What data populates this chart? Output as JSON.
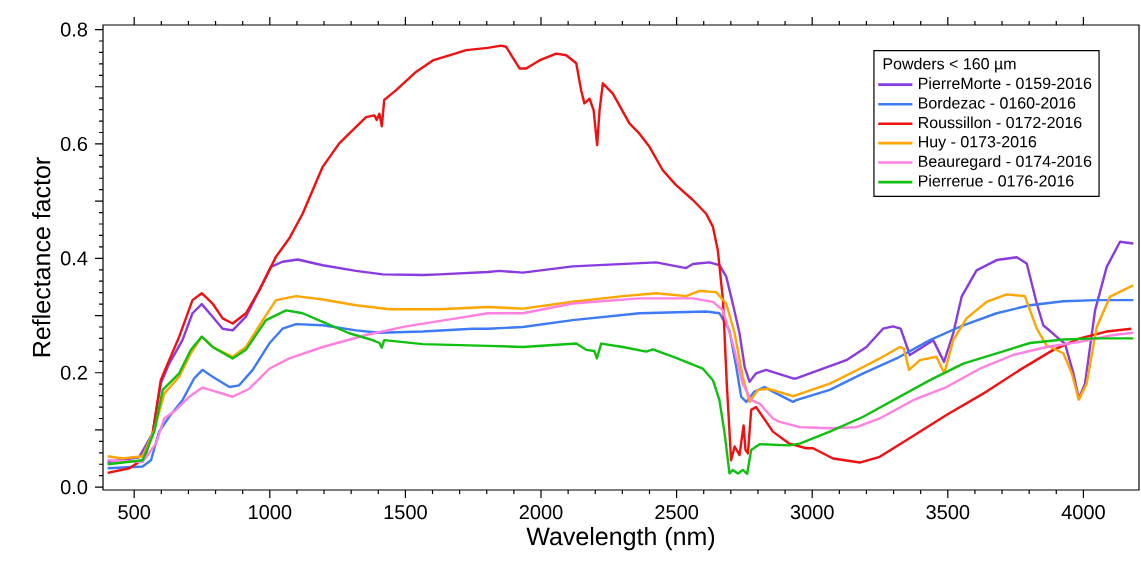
{
  "chart_data": {
    "type": "line",
    "xlabel": "Wavelength (nm)",
    "ylabel": "Reflectance factor",
    "legend_title": "Powders < 160 µm",
    "legend": "top right",
    "xlim": [
      385,
      4205
    ],
    "ylim": [
      -0.005,
      0.808
    ],
    "xticks": [
      500,
      1000,
      1500,
      2000,
      2500,
      3000,
      3500,
      4000
    ],
    "yticks": [
      {
        "value": 0,
        "label": "0.0"
      },
      {
        "value": 0.1,
        "label": null
      },
      {
        "value": 0.2,
        "label": "0.2"
      },
      {
        "value": 0.3,
        "label": null
      },
      {
        "value": 0.4,
        "label": "0.4"
      },
      {
        "value": 0.5,
        "label": null
      },
      {
        "value": 0.6,
        "label": "0.6"
      },
      {
        "value": 0.7,
        "label": null
      },
      {
        "value": 0.8,
        "label": "0.8"
      }
    ],
    "series": [
      {
        "name": "PierreMorte - 0159-2016",
        "color": "#8a3be0",
        "x": [
          402,
          518,
          568,
          598,
          629,
          678,
          715,
          749,
          789,
          826,
          863,
          912,
          961,
          1004,
          1047,
          1103,
          1195,
          1318,
          1416,
          1564,
          1625,
          1804,
          1846,
          1933,
          2117,
          2425,
          2535,
          2560,
          2621,
          2658,
          2683,
          2707,
          2732,
          2751,
          2769,
          2793,
          2830,
          2929,
          2941,
          3027,
          3126,
          3200,
          3261,
          3298,
          3326,
          3360,
          3397,
          3446,
          3486,
          3520,
          3551,
          3606,
          3680,
          3754,
          3791,
          3828,
          3852,
          3901,
          3932,
          3963,
          3983,
          4006,
          4043,
          4086,
          4135,
          4184
        ],
        "values": [
          0.044,
          0.052,
          0.094,
          0.181,
          0.216,
          0.257,
          0.304,
          0.32,
          0.298,
          0.277,
          0.274,
          0.298,
          0.344,
          0.385,
          0.394,
          0.398,
          0.388,
          0.378,
          0.372,
          0.371,
          0.372,
          0.376,
          0.378,
          0.375,
          0.386,
          0.393,
          0.383,
          0.39,
          0.393,
          0.388,
          0.368,
          0.321,
          0.269,
          0.21,
          0.184,
          0.199,
          0.205,
          0.19,
          0.19,
          0.205,
          0.222,
          0.245,
          0.277,
          0.281,
          0.277,
          0.231,
          0.242,
          0.257,
          0.219,
          0.269,
          0.333,
          0.379,
          0.397,
          0.402,
          0.391,
          0.321,
          0.283,
          0.263,
          0.251,
          0.199,
          0.155,
          0.181,
          0.309,
          0.385,
          0.429,
          0.426
        ]
      },
      {
        "name": "Bordezac - 0160-2016",
        "color": "#3d7af5",
        "x": [
          402,
          531,
          562,
          592,
          629,
          678,
          721,
          752,
          789,
          851,
          887,
          937,
          998,
          1047,
          1097,
          1195,
          1318,
          1404,
          1564,
          1748,
          1804,
          1933,
          2117,
          2363,
          2609,
          2658,
          2695,
          2720,
          2738,
          2757,
          2787,
          2824,
          2855,
          2929,
          2941,
          3065,
          3188,
          3311,
          3434,
          3557,
          3680,
          3803,
          3926,
          4049,
          4184
        ],
        "values": [
          0.033,
          0.036,
          0.047,
          0.097,
          0.123,
          0.152,
          0.19,
          0.205,
          0.193,
          0.175,
          0.178,
          0.205,
          0.251,
          0.277,
          0.285,
          0.283,
          0.274,
          0.27,
          0.272,
          0.277,
          0.277,
          0.28,
          0.292,
          0.304,
          0.307,
          0.304,
          0.274,
          0.21,
          0.158,
          0.149,
          0.167,
          0.175,
          0.167,
          0.149,
          0.152,
          0.17,
          0.199,
          0.225,
          0.257,
          0.283,
          0.304,
          0.318,
          0.325,
          0.327,
          0.327
        ]
      },
      {
        "name": "Roussillon - 0172-2016",
        "color": "#f01010",
        "x": [
          402,
          482,
          537,
          568,
          598,
          629,
          666,
          715,
          749,
          789,
          826,
          863,
          912,
          961,
          1023,
          1072,
          1121,
          1195,
          1256,
          1318,
          1355,
          1386,
          1394,
          1404,
          1413,
          1422,
          1466,
          1539,
          1601,
          1662,
          1724,
          1804,
          1853,
          1871,
          1921,
          1945,
          1994,
          2056,
          2093,
          2130,
          2148,
          2160,
          2179,
          2194,
          2207,
          2216,
          2228,
          2265,
          2326,
          2363,
          2400,
          2449,
          2498,
          2560,
          2609,
          2634,
          2652,
          2671,
          2685,
          2701,
          2714,
          2732,
          2747,
          2754,
          2763,
          2775,
          2793,
          2855,
          2916,
          2978,
          3003,
          3077,
          3175,
          3249,
          3347,
          3495,
          3643,
          3766,
          3889,
          3987,
          4085,
          4177
        ],
        "values": [
          0.025,
          0.033,
          0.05,
          0.094,
          0.187,
          0.222,
          0.263,
          0.327,
          0.339,
          0.321,
          0.295,
          0.286,
          0.304,
          0.344,
          0.403,
          0.435,
          0.478,
          0.56,
          0.601,
          0.63,
          0.647,
          0.65,
          0.642,
          0.653,
          0.631,
          0.677,
          0.694,
          0.726,
          0.746,
          0.755,
          0.764,
          0.768,
          0.772,
          0.77,
          0.732,
          0.732,
          0.746,
          0.758,
          0.755,
          0.741,
          0.694,
          0.671,
          0.679,
          0.659,
          0.598,
          0.659,
          0.706,
          0.688,
          0.636,
          0.618,
          0.595,
          0.554,
          0.528,
          0.502,
          0.478,
          0.455,
          0.414,
          0.327,
          0.181,
          0.047,
          0.071,
          0.056,
          0.108,
          0.065,
          0.059,
          0.135,
          0.14,
          0.097,
          0.076,
          0.068,
          0.068,
          0.05,
          0.043,
          0.053,
          0.082,
          0.126,
          0.167,
          0.205,
          0.24,
          0.26,
          0.272,
          0.277
        ]
      },
      {
        "name": "Huy - 0173-2016",
        "color": "#ffa500",
        "x": [
          402,
          457,
          531,
          574,
          611,
          666,
          709,
          749,
          789,
          863,
          912,
          974,
          1023,
          1097,
          1195,
          1318,
          1441,
          1625,
          1804,
          1933,
          2117,
          2302,
          2425,
          2535,
          2584,
          2646,
          2683,
          2714,
          2744,
          2769,
          2800,
          2837,
          2929,
          2941,
          3065,
          3188,
          3249,
          3323,
          3338,
          3357,
          3397,
          3458,
          3487,
          3520,
          3569,
          3643,
          3717,
          3784,
          3828,
          3864,
          3926,
          3957,
          3983,
          4012,
          4049,
          4098,
          4184
        ],
        "values": [
          0.054,
          0.05,
          0.054,
          0.1,
          0.164,
          0.193,
          0.234,
          0.263,
          0.245,
          0.228,
          0.245,
          0.292,
          0.327,
          0.334,
          0.328,
          0.318,
          0.311,
          0.311,
          0.315,
          0.312,
          0.324,
          0.334,
          0.339,
          0.334,
          0.343,
          0.341,
          0.321,
          0.269,
          0.193,
          0.149,
          0.17,
          0.172,
          0.159,
          0.161,
          0.181,
          0.21,
          0.225,
          0.245,
          0.242,
          0.205,
          0.222,
          0.228,
          0.199,
          0.257,
          0.295,
          0.324,
          0.337,
          0.334,
          0.277,
          0.248,
          0.234,
          0.199,
          0.153,
          0.181,
          0.28,
          0.333,
          0.353
        ]
      },
      {
        "name": "Beauregard - 0174-2016",
        "color": "#ff80e0",
        "x": [
          402,
          531,
          580,
          611,
          654,
          703,
          752,
          801,
          863,
          924,
          998,
          1072,
          1195,
          1355,
          1502,
          1687,
          1804,
          1933,
          2117,
          2363,
          2560,
          2634,
          2671,
          2707,
          2744,
          2775,
          2806,
          2855,
          2880,
          2954,
          3065,
          3163,
          3249,
          3372,
          3495,
          3618,
          3741,
          3864,
          3987,
          4110,
          4184
        ],
        "values": [
          0.047,
          0.044,
          0.076,
          0.12,
          0.135,
          0.158,
          0.174,
          0.167,
          0.158,
          0.172,
          0.207,
          0.225,
          0.245,
          0.266,
          0.281,
          0.295,
          0.304,
          0.304,
          0.321,
          0.33,
          0.33,
          0.324,
          0.309,
          0.251,
          0.181,
          0.152,
          0.146,
          0.12,
          0.114,
          0.105,
          0.103,
          0.105,
          0.12,
          0.152,
          0.175,
          0.207,
          0.231,
          0.245,
          0.254,
          0.266,
          0.27
        ]
      },
      {
        "name": "Pierrerue - 0176-2016",
        "color": "#10c010",
        "x": [
          402,
          531,
          574,
          605,
          666,
          709,
          749,
          789,
          863,
          912,
          986,
          1060,
          1121,
          1195,
          1293,
          1379,
          1404,
          1413,
          1422,
          1564,
          1804,
          1933,
          2130,
          2167,
          2197,
          2206,
          2222,
          2302,
          2388,
          2412,
          2486,
          2597,
          2634,
          2658,
          2677,
          2695,
          2707,
          2726,
          2744,
          2760,
          2775,
          2806,
          2916,
          2954,
          3065,
          3188,
          3311,
          3434,
          3557,
          3680,
          3803,
          3926,
          4049,
          4184
        ],
        "values": [
          0.04,
          0.047,
          0.097,
          0.17,
          0.199,
          0.24,
          0.263,
          0.245,
          0.225,
          0.24,
          0.292,
          0.309,
          0.304,
          0.289,
          0.269,
          0.257,
          0.252,
          0.244,
          0.257,
          0.25,
          0.247,
          0.245,
          0.251,
          0.24,
          0.238,
          0.225,
          0.251,
          0.245,
          0.237,
          0.241,
          0.228,
          0.207,
          0.187,
          0.152,
          0.094,
          0.024,
          0.03,
          0.024,
          0.03,
          0.023,
          0.065,
          0.075,
          0.073,
          0.076,
          0.097,
          0.123,
          0.155,
          0.187,
          0.216,
          0.234,
          0.252,
          0.258,
          0.26,
          0.26
        ]
      }
    ]
  }
}
